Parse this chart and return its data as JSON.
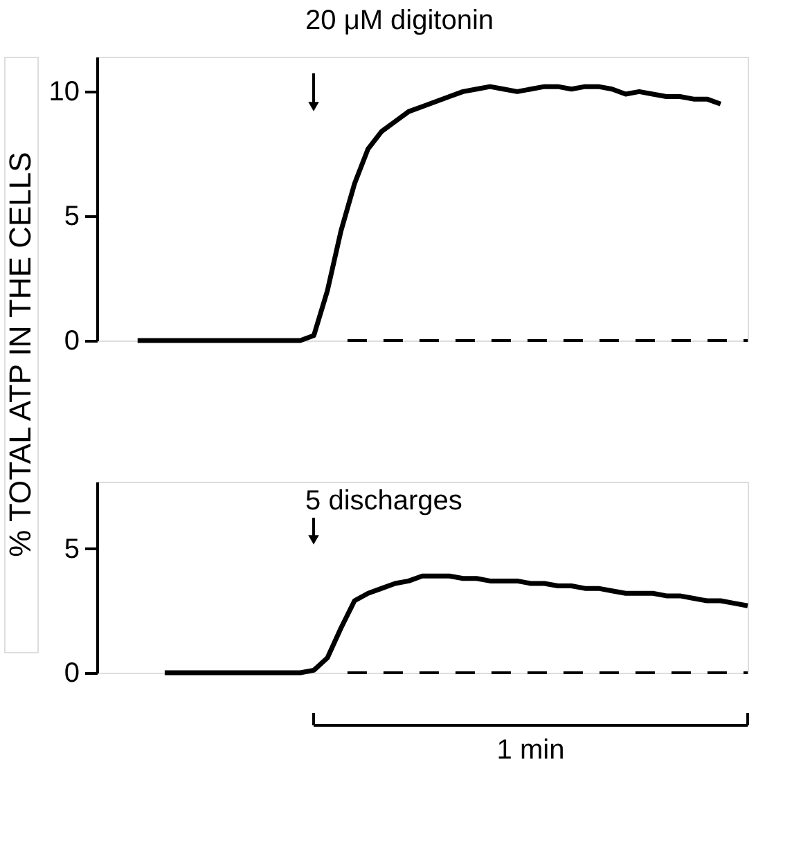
{
  "chart_data": [
    {
      "type": "line",
      "ylabel": "% TOTAL ATP IN THE CELLS",
      "ylim": [
        0,
        11.4
      ],
      "yticks": [
        0,
        5,
        10
      ],
      "tick_labels": "y",
      "categories": [
        null,
        null,
        null,
        null,
        null,
        null,
        null,
        null,
        null,
        null,
        null,
        null,
        null,
        null,
        null,
        null,
        null,
        null,
        null,
        null,
        null,
        null,
        null,
        null,
        null,
        null,
        null,
        null,
        null,
        null,
        null,
        null,
        null,
        null,
        null,
        null,
        null,
        null,
        null,
        null,
        null,
        null,
        null,
        null,
        null,
        null,
        null,
        null,
        null
      ],
      "series": [
        {
          "color": "#000000",
          "values": [
            null,
            null,
            null,
            0,
            0,
            0,
            0,
            0,
            0,
            0,
            0,
            0,
            0,
            0,
            0,
            0,
            0.2,
            2.0,
            4.4,
            6.3,
            7.7,
            8.4,
            8.8,
            9.2,
            9.4,
            9.6,
            9.8,
            10.0,
            10.1,
            10.2,
            10.1,
            10.0,
            10.1,
            10.2,
            10.2,
            10.1,
            10.2,
            10.2,
            10.1,
            9.9,
            10.0,
            9.9,
            9.8,
            9.8,
            9.7,
            9.7,
            9.5,
            null,
            null
          ]
        }
      ],
      "ref_lines": [
        {
          "axis": "y",
          "value": 0,
          "line_style": "dashed",
          "color": "#000000"
        }
      ],
      "annotations": [
        "20 μM digitonin"
      ]
    },
    {
      "type": "line",
      "xlabel": "1 min",
      "ylim": [
        0,
        7.7
      ],
      "yticks": [
        0,
        5
      ],
      "tick_labels": "y",
      "categories": [
        null,
        null,
        null,
        null,
        null,
        null,
        null,
        null,
        null,
        null,
        null,
        null,
        null,
        null,
        null,
        null,
        null,
        null,
        null,
        null,
        null,
        null,
        null,
        null,
        null,
        null,
        null,
        null,
        null,
        null,
        null,
        null,
        null,
        null,
        null,
        null,
        null,
        null,
        null,
        null,
        null,
        null,
        null,
        null,
        null,
        null,
        null,
        null,
        null
      ],
      "series": [
        {
          "color": "#000000",
          "values": [
            null,
            null,
            null,
            null,
            null,
            0,
            0,
            0,
            0,
            0,
            0,
            0,
            0,
            0,
            0,
            0,
            0.1,
            0.6,
            1.8,
            2.9,
            3.2,
            3.4,
            3.6,
            3.7,
            3.9,
            3.9,
            3.9,
            3.8,
            3.8,
            3.7,
            3.7,
            3.7,
            3.6,
            3.6,
            3.5,
            3.5,
            3.4,
            3.4,
            3.3,
            3.2,
            3.2,
            3.2,
            3.1,
            3.1,
            3.0,
            2.9,
            2.9,
            2.8,
            2.7
          ]
        }
      ],
      "ref_lines": [
        {
          "axis": "y",
          "value": 0,
          "line_style": "dashed",
          "color": "#000000"
        }
      ],
      "annotations": [
        "5 discharges"
      ]
    }
  ]
}
